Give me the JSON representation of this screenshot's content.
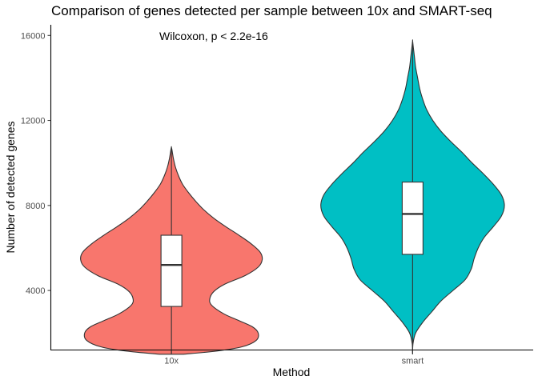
{
  "chart_data": {
    "type": "violin",
    "title": "Comparison of genes detected per sample between 10x and SMART-seq",
    "xlabel": "Method",
    "ylabel": "Number of detected genes",
    "categories": [
      "10x",
      "smart"
    ],
    "ylim": [
      1200,
      16500
    ],
    "yticks": [
      4000,
      8000,
      12000,
      16000
    ],
    "yticklabels": [
      "4000",
      "8000",
      "12000",
      "16000"
    ],
    "grid": false,
    "legend": "none",
    "annotation": "Wilcoxon, p < 2.2e-16",
    "series": [
      {
        "category": "10x",
        "color": "#F8766D",
        "box": {
          "min": 1000,
          "q1": 3250,
          "median": 5200,
          "q3": 6600,
          "max": 10700
        },
        "density": [
          [
            1000,
            0.12
          ],
          [
            1150,
            0.45
          ],
          [
            1350,
            0.7
          ],
          [
            1650,
            0.84
          ],
          [
            2000,
            0.86
          ],
          [
            2300,
            0.8
          ],
          [
            2600,
            0.66
          ],
          [
            2900,
            0.52
          ],
          [
            3300,
            0.4
          ],
          [
            3600,
            0.38
          ],
          [
            3950,
            0.42
          ],
          [
            4300,
            0.53
          ],
          [
            4700,
            0.73
          ],
          [
            5100,
            0.86
          ],
          [
            5450,
            0.9
          ],
          [
            5800,
            0.88
          ],
          [
            6200,
            0.79
          ],
          [
            6600,
            0.67
          ],
          [
            7000,
            0.54
          ],
          [
            7400,
            0.42
          ],
          [
            7800,
            0.32
          ],
          [
            8200,
            0.24
          ],
          [
            8600,
            0.17
          ],
          [
            9000,
            0.11
          ],
          [
            9400,
            0.07
          ],
          [
            9800,
            0.04
          ],
          [
            10200,
            0.02
          ],
          [
            10600,
            0.006
          ],
          [
            10750,
            0.0
          ]
        ]
      },
      {
        "category": "smart",
        "color": "#00BFC4",
        "box": {
          "min": 1000,
          "q1": 5700,
          "median": 7600,
          "q3": 9100,
          "max": 15700
        },
        "density": [
          [
            1000,
            0.0
          ],
          [
            1500,
            0.004
          ],
          [
            2000,
            0.03
          ],
          [
            2500,
            0.1
          ],
          [
            3000,
            0.19
          ],
          [
            3500,
            0.28
          ],
          [
            4000,
            0.4
          ],
          [
            4500,
            0.52
          ],
          [
            5000,
            0.58
          ],
          [
            5500,
            0.61
          ],
          [
            6000,
            0.65
          ],
          [
            6500,
            0.71
          ],
          [
            7000,
            0.8
          ],
          [
            7500,
            0.88
          ],
          [
            8000,
            0.91
          ],
          [
            8500,
            0.88
          ],
          [
            9000,
            0.8
          ],
          [
            9500,
            0.7
          ],
          [
            10000,
            0.59
          ],
          [
            10500,
            0.49
          ],
          [
            11000,
            0.38
          ],
          [
            11500,
            0.28
          ],
          [
            12000,
            0.2
          ],
          [
            12500,
            0.14
          ],
          [
            13000,
            0.1
          ],
          [
            13500,
            0.07
          ],
          [
            14000,
            0.05
          ],
          [
            14500,
            0.03
          ],
          [
            15000,
            0.018
          ],
          [
            15400,
            0.008
          ],
          [
            15750,
            0.0
          ]
        ]
      }
    ]
  }
}
